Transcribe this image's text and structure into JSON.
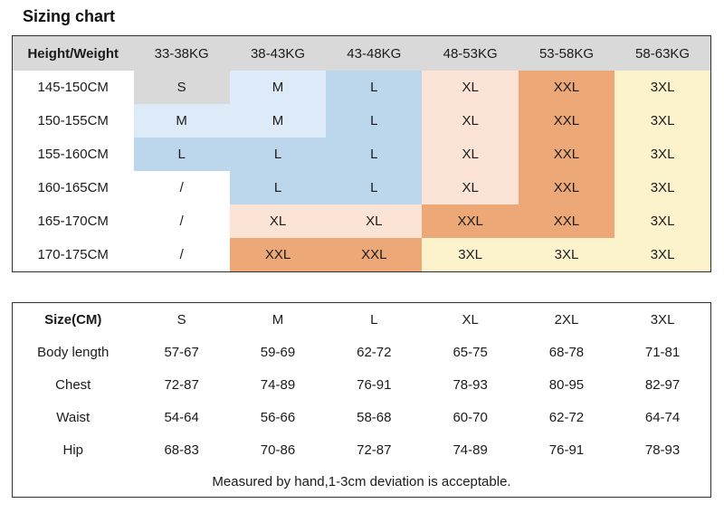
{
  "page": {
    "title": "Sizing chart"
  },
  "palette": {
    "gray": "#d9d9d9",
    "lightblue": "#dcebf7",
    "blue": "#bcd6ec",
    "pink": "#fbe3d6",
    "orange": "#eca876",
    "yellow": "#fcf3cd",
    "white": "#ffffff",
    "header_bg": "#d9d9d9",
    "border": "#2e2e2e"
  },
  "size_matrix": {
    "header": [
      "Height/Weight",
      "33-38KG",
      "38-43KG",
      "43-48KG",
      "48-53KG",
      "53-58KG",
      "58-63KG"
    ],
    "rows": [
      {
        "label": "145-150CM",
        "cells": [
          {
            "v": "S",
            "bg": "gray"
          },
          {
            "v": "M",
            "bg": "lightblue"
          },
          {
            "v": "L",
            "bg": "blue"
          },
          {
            "v": "XL",
            "bg": "pink"
          },
          {
            "v": "XXL",
            "bg": "orange"
          },
          {
            "v": "3XL",
            "bg": "yellow"
          }
        ]
      },
      {
        "label": "150-155CM",
        "cells": [
          {
            "v": "M",
            "bg": "lightblue"
          },
          {
            "v": "M",
            "bg": "lightblue"
          },
          {
            "v": "L",
            "bg": "blue"
          },
          {
            "v": "XL",
            "bg": "pink"
          },
          {
            "v": "XXL",
            "bg": "orange"
          },
          {
            "v": "3XL",
            "bg": "yellow"
          }
        ]
      },
      {
        "label": "155-160CM",
        "cells": [
          {
            "v": "L",
            "bg": "blue"
          },
          {
            "v": "L",
            "bg": "blue"
          },
          {
            "v": "L",
            "bg": "blue"
          },
          {
            "v": "XL",
            "bg": "pink"
          },
          {
            "v": "XXL",
            "bg": "orange"
          },
          {
            "v": "3XL",
            "bg": "yellow"
          }
        ]
      },
      {
        "label": "160-165CM",
        "cells": [
          {
            "v": "/",
            "bg": "white"
          },
          {
            "v": "L",
            "bg": "blue"
          },
          {
            "v": "L",
            "bg": "blue"
          },
          {
            "v": "XL",
            "bg": "pink"
          },
          {
            "v": "XXL",
            "bg": "orange"
          },
          {
            "v": "3XL",
            "bg": "yellow"
          }
        ]
      },
      {
        "label": "165-170CM",
        "cells": [
          {
            "v": "/",
            "bg": "white"
          },
          {
            "v": "XL",
            "bg": "pink"
          },
          {
            "v": "XL",
            "bg": "pink"
          },
          {
            "v": "XXL",
            "bg": "orange"
          },
          {
            "v": "XXL",
            "bg": "orange"
          },
          {
            "v": "3XL",
            "bg": "yellow"
          }
        ]
      },
      {
        "label": "170-175CM",
        "cells": [
          {
            "v": "/",
            "bg": "white"
          },
          {
            "v": "XXL",
            "bg": "orange"
          },
          {
            "v": "XXL",
            "bg": "orange"
          },
          {
            "v": "3XL",
            "bg": "yellow"
          },
          {
            "v": "3XL",
            "bg": "yellow"
          },
          {
            "v": "3XL",
            "bg": "yellow"
          }
        ]
      }
    ]
  },
  "measurements": {
    "header": [
      "Size(CM)",
      "S",
      "M",
      "L",
      "XL",
      "2XL",
      "3XL"
    ],
    "rows": [
      {
        "label": "Body length",
        "values": [
          "57-67",
          "59-69",
          "62-72",
          "65-75",
          "68-78",
          "71-81"
        ]
      },
      {
        "label": "Chest",
        "values": [
          "72-87",
          "74-89",
          "76-91",
          "78-93",
          "80-95",
          "82-97"
        ]
      },
      {
        "label": "Waist",
        "values": [
          "54-64",
          "56-66",
          "58-68",
          "60-70",
          "62-72",
          "64-74"
        ]
      },
      {
        "label": "Hip",
        "values": [
          "68-83",
          "70-86",
          "72-87",
          "74-89",
          "76-91",
          "78-93"
        ]
      }
    ],
    "footnote": "Measured by hand,1-3cm deviation is acceptable."
  }
}
